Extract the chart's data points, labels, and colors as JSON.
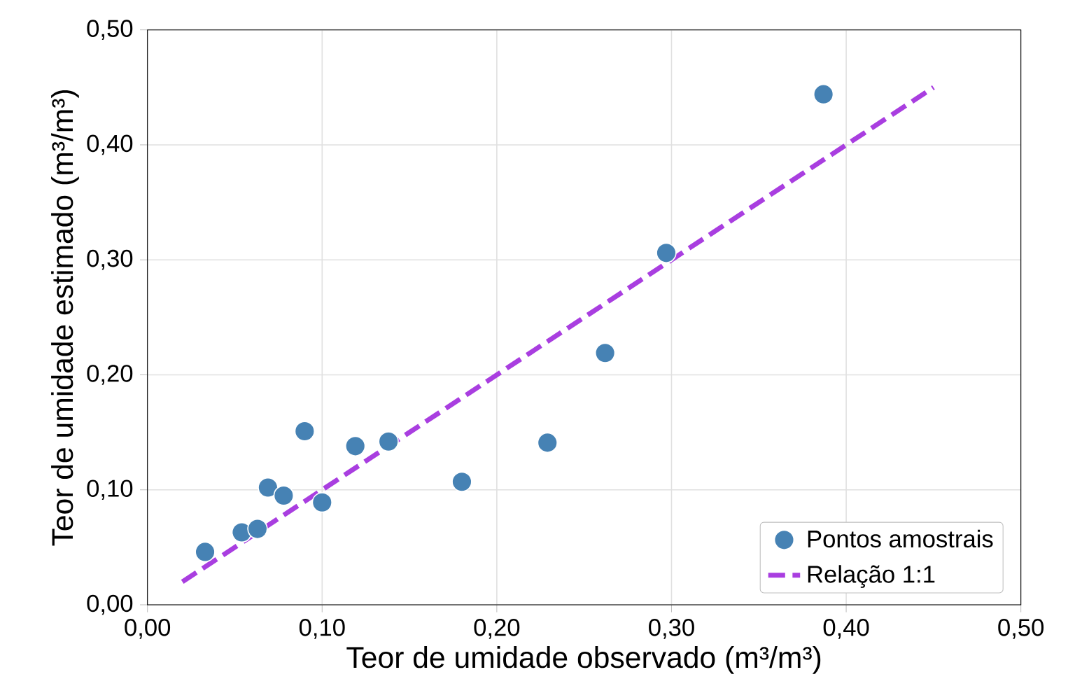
{
  "chart_data": {
    "type": "scatter",
    "xlabel": "Teor de umidade observado (m³/m³)",
    "ylabel": "Teor de umidade estimado (m³/m³)",
    "xlim": [
      0,
      0.5
    ],
    "ylim": [
      0,
      0.5
    ],
    "xticks": [
      {
        "value": 0,
        "label": "0,00"
      },
      {
        "value": 0.1,
        "label": "0,10"
      },
      {
        "value": 0.2,
        "label": "0,20"
      },
      {
        "value": 0.3,
        "label": "0,30"
      },
      {
        "value": 0.4,
        "label": "0,40"
      },
      {
        "value": 0.5,
        "label": "0,50"
      }
    ],
    "yticks": [
      {
        "value": 0,
        "label": "0,00"
      },
      {
        "value": 0.1,
        "label": "0,10"
      },
      {
        "value": 0.2,
        "label": "0,20"
      },
      {
        "value": 0.3,
        "label": "0,30"
      },
      {
        "value": 0.4,
        "label": "0,40"
      },
      {
        "value": 0.5,
        "label": "0,50"
      }
    ],
    "grid": true,
    "legend": "bottom right",
    "series": [
      {
        "name": "Pontos amostrais",
        "marker": "circle",
        "color": "#4682b4",
        "x": [
          0.033,
          0.054,
          0.063,
          0.069,
          0.078,
          0.09,
          0.1,
          0.119,
          0.138,
          0.18,
          0.229,
          0.262,
          0.297,
          0.387
        ],
        "values": [
          0.046,
          0.063,
          0.066,
          0.102,
          0.095,
          0.151,
          0.089,
          0.138,
          0.142,
          0.107,
          0.141,
          0.219,
          0.306,
          0.444
        ]
      },
      {
        "name": "Relação 1:1",
        "type": "line",
        "marker": "none",
        "line_style": "dashed",
        "color": "#a93ee0",
        "x": [
          0.02,
          0.45
        ],
        "values": [
          0.02,
          0.45
        ]
      }
    ]
  }
}
